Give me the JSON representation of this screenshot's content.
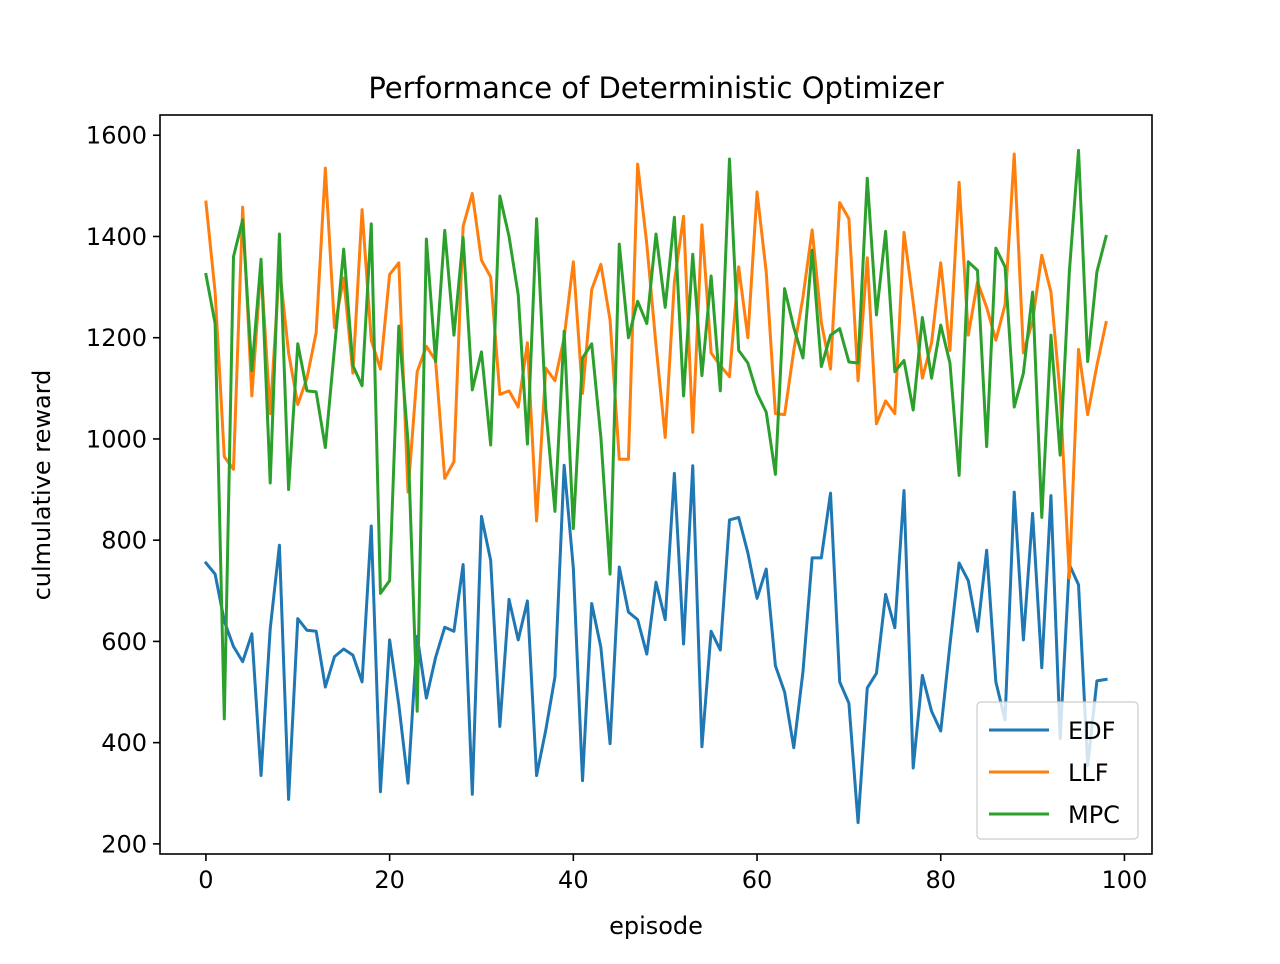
{
  "chart_data": {
    "type": "line",
    "title": "Performance of Deterministic Optimizer",
    "xlabel": "episode",
    "ylabel": "culmulative reward",
    "xlim": [
      -5,
      103
    ],
    "ylim": [
      180,
      1640
    ],
    "xticks": [
      0,
      20,
      40,
      60,
      80,
      100
    ],
    "yticks": [
      200,
      400,
      600,
      800,
      1000,
      1200,
      1400,
      1600
    ],
    "grid": false,
    "legend_position": "lower right",
    "x": [
      0,
      1,
      2,
      3,
      4,
      5,
      6,
      7,
      8,
      9,
      10,
      11,
      12,
      13,
      14,
      15,
      16,
      17,
      18,
      19,
      20,
      21,
      22,
      23,
      24,
      25,
      26,
      27,
      28,
      29,
      30,
      31,
      32,
      33,
      34,
      35,
      36,
      37,
      38,
      39,
      40,
      41,
      42,
      43,
      44,
      45,
      46,
      47,
      48,
      49,
      50,
      51,
      52,
      53,
      54,
      55,
      56,
      57,
      58,
      59,
      60,
      61,
      62,
      63,
      64,
      65,
      66,
      67,
      68,
      69,
      70,
      71,
      72,
      73,
      74,
      75,
      76,
      77,
      78,
      79,
      80,
      81,
      82,
      83,
      84,
      85,
      86,
      87,
      88,
      89,
      90,
      91,
      92,
      93,
      94,
      95,
      96,
      97,
      98
    ],
    "series": [
      {
        "name": "EDF",
        "color": "#1f77b4",
        "values": [
          755,
          733,
          640,
          590,
          560,
          615,
          335,
          625,
          790,
          288,
          645,
          622,
          620,
          510,
          570,
          585,
          573,
          520,
          828,
          303,
          603,
          475,
          320,
          610,
          488,
          568,
          628,
          620,
          752,
          298,
          847,
          760,
          432,
          683,
          603,
          680,
          335,
          425,
          530,
          948,
          745,
          325,
          675,
          588,
          398,
          747,
          658,
          643,
          575,
          717,
          643,
          932,
          595,
          947,
          392,
          620,
          583,
          840,
          845,
          775,
          685,
          743,
          552,
          500,
          390,
          540,
          765,
          765,
          893,
          520,
          478,
          242,
          508,
          537,
          693,
          627,
          898,
          350,
          533,
          462,
          423,
          593,
          755,
          720,
          620,
          780,
          520,
          445,
          895,
          603,
          853,
          548,
          888,
          408,
          752,
          712,
          355,
          522,
          525
        ]
      },
      {
        "name": "LLF",
        "color": "#ff7f0e",
        "values": [
          1468,
          1290,
          965,
          940,
          1458,
          1085,
          1340,
          1050,
          1340,
          1170,
          1068,
          1120,
          1210,
          1535,
          1220,
          1318,
          1130,
          1453,
          1195,
          1138,
          1325,
          1348,
          895,
          1133,
          1183,
          1155,
          922,
          955,
          1420,
          1485,
          1353,
          1320,
          1088,
          1095,
          1063,
          1190,
          838,
          1140,
          1115,
          1200,
          1350,
          1090,
          1295,
          1345,
          1235,
          960,
          960,
          1543,
          1385,
          1185,
          1003,
          1310,
          1440,
          1013,
          1423,
          1170,
          1145,
          1123,
          1340,
          1200,
          1488,
          1330,
          1050,
          1048,
          1175,
          1280,
          1413,
          1230,
          1138,
          1467,
          1435,
          1115,
          1358,
          1030,
          1075,
          1050,
          1408,
          1270,
          1120,
          1190,
          1348,
          1175,
          1507,
          1205,
          1310,
          1260,
          1195,
          1265,
          1563,
          1170,
          1233,
          1363,
          1290,
          1090,
          725,
          1177,
          1048,
          1145,
          1230
        ]
      },
      {
        "name": "MPC",
        "color": "#2ca02c",
        "values": [
          1325,
          1228,
          447,
          1360,
          1433,
          1135,
          1355,
          913,
          1405,
          900,
          1188,
          1095,
          1093,
          983,
          1180,
          1375,
          1145,
          1105,
          1425,
          695,
          720,
          1223,
          995,
          462,
          1395,
          1153,
          1412,
          1205,
          1398,
          1097,
          1172,
          988,
          1480,
          1400,
          1285,
          990,
          1435,
          1060,
          857,
          1213,
          823,
          1160,
          1188,
          1003,
          733,
          1385,
          1200,
          1272,
          1228,
          1405,
          1260,
          1438,
          1085,
          1365,
          1125,
          1322,
          1095,
          1553,
          1175,
          1150,
          1090,
          1053,
          930,
          1297,
          1220,
          1160,
          1373,
          1143,
          1205,
          1218,
          1152,
          1150,
          1515,
          1245,
          1410,
          1133,
          1155,
          1057,
          1240,
          1120,
          1225,
          1150,
          928,
          1350,
          1333,
          985,
          1377,
          1340,
          1063,
          1130,
          1290,
          845,
          1205,
          968,
          1330,
          1570,
          1153,
          1330,
          1400
        ]
      }
    ]
  }
}
